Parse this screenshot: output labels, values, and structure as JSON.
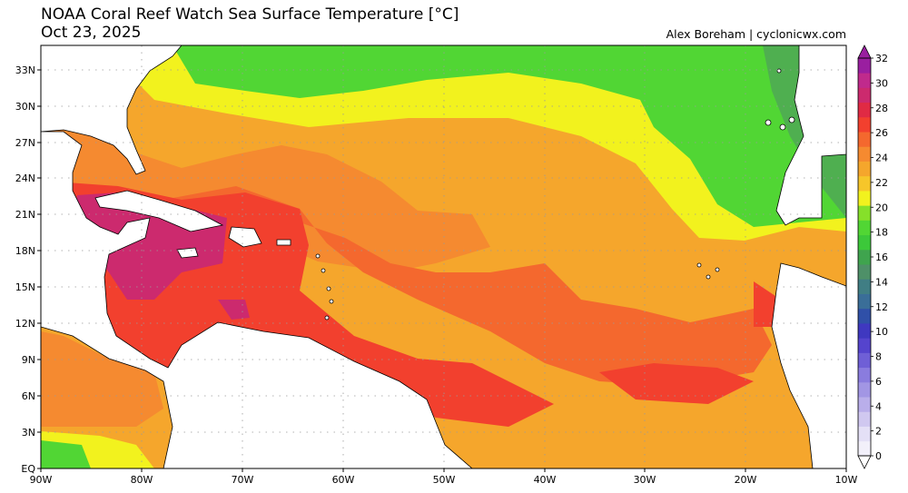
{
  "header": {
    "title": "NOAA Coral Reef Watch Sea Surface Temperature [°C]",
    "date": "Oct 23, 2025",
    "credit": "Alex Boreham | cyclonicwx.com"
  },
  "map": {
    "lon_labels": [
      "90W",
      "80W",
      "70W",
      "60W",
      "50W",
      "40W",
      "30W",
      "20W",
      "10W"
    ],
    "lat_labels": [
      "EQ",
      "3N",
      "6N",
      "9N",
      "12N",
      "15N",
      "18N",
      "21N",
      "24N",
      "27N",
      "30N",
      "33N"
    ],
    "lon_range": [
      -90,
      -10
    ],
    "lat_range": [
      0,
      35
    ]
  },
  "colorbar": {
    "labels": [
      "0",
      "2",
      "4",
      "6",
      "8",
      "10",
      "12",
      "14",
      "16",
      "18",
      "20",
      "22",
      "24",
      "26",
      "28",
      "30",
      "32"
    ],
    "colors": [
      "#f2f0fa",
      "#e4e0f6",
      "#d0c8f0",
      "#b9aeea",
      "#a296e4",
      "#8a7cde",
      "#6f5fd6",
      "#5544cd",
      "#3f38c0",
      "#3050a8",
      "#3a6e98",
      "#407e84",
      "#4e9068",
      "#3fa44e",
      "#3cc83a",
      "#51d634",
      "#86e02a",
      "#f2f21e",
      "#f6c62a",
      "#f5a62c",
      "#f58a30",
      "#f4682e",
      "#f2402e",
      "#e02a44",
      "#cc2a6e",
      "#c02a8c",
      "#9a1fa0"
    ]
  }
}
